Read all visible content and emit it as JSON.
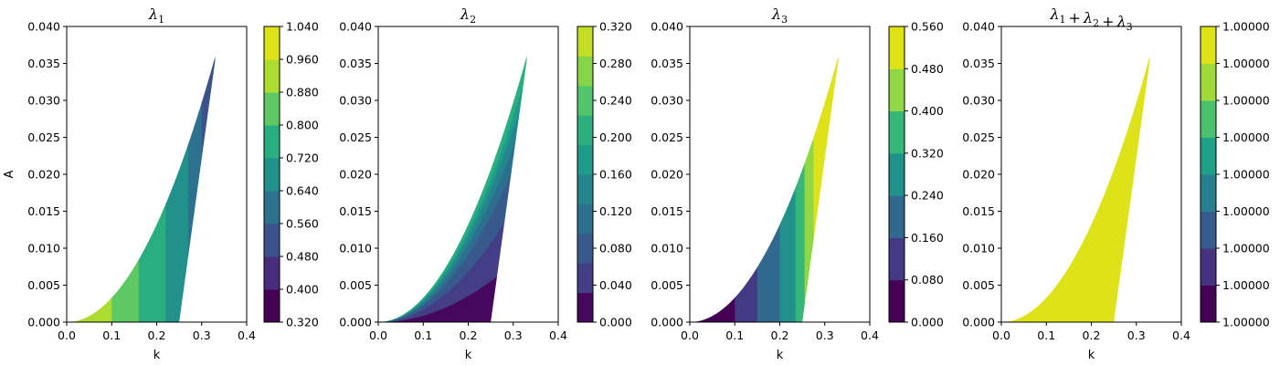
{
  "chart_data": [
    {
      "type": "contourf",
      "title": "λ1",
      "xlabel": "k",
      "ylabel": "A",
      "xlim": [
        0.0,
        0.4
      ],
      "ylim": [
        0.0,
        0.04
      ],
      "x_ticks": [
        "0.0",
        "0.1",
        "0.2",
        "0.3",
        "0.4"
      ],
      "y_ticks": [
        "0.000",
        "0.005",
        "0.010",
        "0.015",
        "0.020",
        "0.025",
        "0.030",
        "0.035",
        "0.040"
      ],
      "colorbar_levels": [
        "0.320",
        "0.400",
        "0.480",
        "0.560",
        "0.640",
        "0.720",
        "0.800",
        "0.880",
        "0.960",
        "1.040"
      ],
      "colorbar_colors": [
        "#440154",
        "#472d7b",
        "#3b528b",
        "#2c728e",
        "#21918c",
        "#28ae80",
        "#5ec962",
        "#addc30",
        "#dde318"
      ],
      "region_boundaries": {
        "lower_curve": "A = 0.3301 * k^2",
        "upper_line": "A = 0.4426 * (k - 0.25)",
        "k_range": [
          0.0,
          0.33
        ]
      },
      "bands": [
        {
          "k_from": 0.0,
          "k_to": 0.1,
          "level_index": 7
        },
        {
          "k_from": 0.1,
          "k_to": 0.16,
          "level_index": 6
        },
        {
          "k_from": 0.16,
          "k_to": 0.22,
          "level_index": 5
        },
        {
          "k_from": 0.22,
          "k_to": 0.27,
          "level_index": 4
        },
        {
          "k_from": 0.27,
          "k_to": 0.3,
          "level_index": 3
        },
        {
          "k_from": 0.3,
          "k_to": 0.33,
          "level_index": 2
        }
      ]
    },
    {
      "type": "contourf",
      "title": "λ2",
      "xlabel": "k",
      "ylabel": "",
      "xlim": [
        0.0,
        0.4
      ],
      "ylim": [
        0.0,
        0.04
      ],
      "x_ticks": [
        "0.0",
        "0.1",
        "0.2",
        "0.3",
        "0.4"
      ],
      "y_ticks": [
        "0.000",
        "0.005",
        "0.010",
        "0.015",
        "0.020",
        "0.025",
        "0.030",
        "0.035",
        "0.040"
      ],
      "colorbar_levels": [
        "0.000",
        "0.040",
        "0.080",
        "0.120",
        "0.160",
        "0.200",
        "0.240",
        "0.280",
        "0.320"
      ],
      "colorbar_colors": [
        "#46085c",
        "#433e85",
        "#38598c",
        "#2d708e",
        "#25858e",
        "#1e9b8a",
        "#2ab07f",
        "#51c56a",
        "#86d549",
        "#c2df23"
      ],
      "region_boundaries": {
        "lower_curve": "A = 0.3301 * k^2",
        "upper_line": "A = 0.4426 * (k - 0.25)",
        "k_range": [
          0.0,
          0.33
        ]
      },
      "bands_by_ratio": [
        {
          "ratio_from": 0.0,
          "ratio_to": 0.27,
          "level_index": 0
        },
        {
          "ratio_from": 0.27,
          "ratio_to": 0.52,
          "level_index": 1
        },
        {
          "ratio_from": 0.52,
          "ratio_to": 0.7,
          "level_index": 2
        },
        {
          "ratio_from": 0.7,
          "ratio_to": 0.8,
          "level_index": 3
        },
        {
          "ratio_from": 0.8,
          "ratio_to": 0.88,
          "level_index": 4
        },
        {
          "ratio_from": 0.88,
          "ratio_to": 0.94,
          "level_index": 5
        },
        {
          "ratio_from": 0.94,
          "ratio_to": 1.0,
          "level_index": 6
        }
      ]
    },
    {
      "type": "contourf",
      "title": "λ3",
      "xlabel": "k",
      "ylabel": "",
      "xlim": [
        0.0,
        0.4
      ],
      "ylim": [
        0.0,
        0.04
      ],
      "x_ticks": [
        "0.0",
        "0.1",
        "0.2",
        "0.3",
        "0.4"
      ],
      "y_ticks": [
        "0.000",
        "0.005",
        "0.010",
        "0.015",
        "0.020",
        "0.025",
        "0.030",
        "0.035",
        "0.040"
      ],
      "colorbar_levels": [
        "0.000",
        "0.080",
        "0.160",
        "0.240",
        "0.320",
        "0.400",
        "0.480",
        "0.560"
      ],
      "colorbar_colors": [
        "#440154",
        "#443983",
        "#31688e",
        "#21918c",
        "#35b779",
        "#8fd744",
        "#dde318"
      ],
      "region_boundaries": {
        "lower_curve": "A = 0.3301 * k^2",
        "upper_line": "A = 0.4426 * (k - 0.25)",
        "k_range": [
          0.0,
          0.33
        ]
      },
      "bands": [
        {
          "k_from": 0.0,
          "k_to": 0.1,
          "level_index": 0
        },
        {
          "k_from": 0.1,
          "k_to": 0.15,
          "level_index": 1
        },
        {
          "k_from": 0.15,
          "k_to": 0.2,
          "level_index": 2
        },
        {
          "k_from": 0.2,
          "k_to": 0.235,
          "level_index": 3
        },
        {
          "k_from": 0.235,
          "k_to": 0.255,
          "level_index": 4
        },
        {
          "k_from": 0.255,
          "k_to": 0.275,
          "level_index": 5
        },
        {
          "k_from": 0.275,
          "k_to": 0.33,
          "level_index": 6
        }
      ]
    },
    {
      "type": "contourf",
      "title": "λ1 + λ2 + λ3",
      "xlabel": "k",
      "ylabel": "",
      "xlim": [
        0.0,
        0.4
      ],
      "ylim": [
        0.0,
        0.04
      ],
      "x_ticks": [
        "0.0",
        "0.1",
        "0.2",
        "0.3",
        "0.4"
      ],
      "y_ticks": [
        "0.000",
        "0.005",
        "0.010",
        "0.015",
        "0.020",
        "0.025",
        "0.030",
        "0.035",
        "0.040"
      ],
      "colorbar_levels": [
        "1.00000",
        "1.00000",
        "1.00000",
        "1.00000",
        "1.00000",
        "1.00000",
        "1.00000",
        "1.00000",
        "1.00000"
      ],
      "colorbar_colors": [
        "#440154",
        "#46337f",
        "#365c8d",
        "#277f8e",
        "#1fa187",
        "#4ac16d",
        "#a0da39",
        "#dde318"
      ],
      "region_boundaries": {
        "lower_curve": "A = 0.3301 * k^2",
        "upper_line": "A = 0.4426 * (k - 0.25)",
        "k_range": [
          0.0,
          0.33
        ]
      },
      "fill_color": "#dde318"
    }
  ]
}
